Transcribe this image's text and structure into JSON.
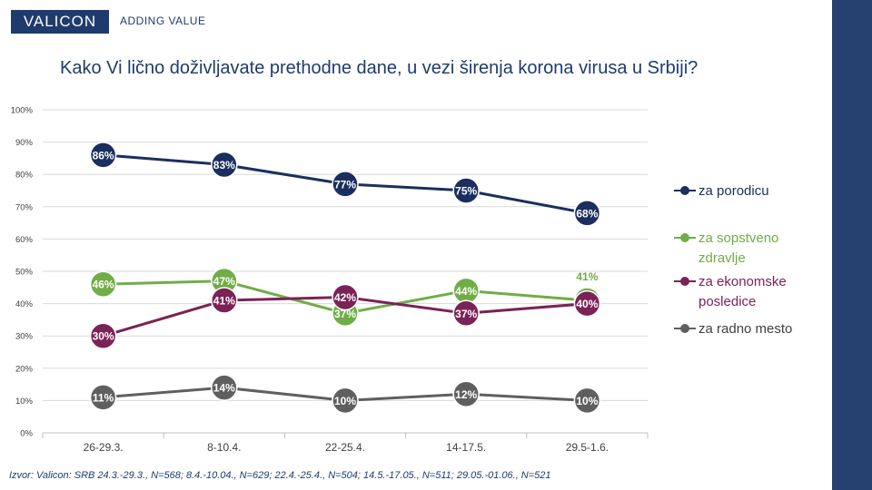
{
  "brand": {
    "logo": "VALICON",
    "tagline": "ADDING VALUE"
  },
  "title": "Kako Vi lično doživljavate prethodne dane, u vezi širenja korona virusa u Srbiji?",
  "source": "Izvor: Valicon: SRB 24.3.-29.3., N=568; 8.4.-10.04., N=629; 22.4.-25.4., N=504; 14.5.-17.05., N=511; 29.05.-01.06., N=521",
  "chart_data": {
    "type": "line",
    "title": "Kako Vi lično doživljavate prethodne dane, u vezi širenja korona virusa u Srbiji?",
    "categories": [
      "26-29.3.",
      "8-10.4.",
      "22-25.4.",
      "14-17.5.",
      "29.5-1.6."
    ],
    "ylim": [
      0,
      100
    ],
    "yticks": [
      "0%",
      "10%",
      "20%",
      "30%",
      "40%",
      "50%",
      "60%",
      "70%",
      "80%",
      "90%",
      "100%"
    ],
    "grid": true,
    "legend_position": "right",
    "series": [
      {
        "name": "za porodicu",
        "color": "#1a2f5e",
        "values": [
          86,
          83,
          77,
          75,
          68
        ]
      },
      {
        "name": "za sopstveno zdravlje",
        "color": "#70ad47",
        "values": [
          46,
          47,
          37,
          44,
          41
        ]
      },
      {
        "name": "za ekonomske posledice",
        "color": "#7b2257",
        "values": [
          30,
          41,
          42,
          37,
          40
        ]
      },
      {
        "name": "za radno mesto",
        "color": "#5f5f5f",
        "values": [
          11,
          14,
          10,
          12,
          10
        ]
      }
    ],
    "data_labels": [
      [
        "86%",
        "83%",
        "77%",
        "75%",
        "68%"
      ],
      [
        "46%",
        "47%",
        "37%",
        "44%",
        "41%"
      ],
      [
        "30%",
        "41%",
        "42%",
        "37%",
        "40%"
      ],
      [
        "11%",
        "14%",
        "10%",
        "12%",
        "10%"
      ]
    ]
  }
}
